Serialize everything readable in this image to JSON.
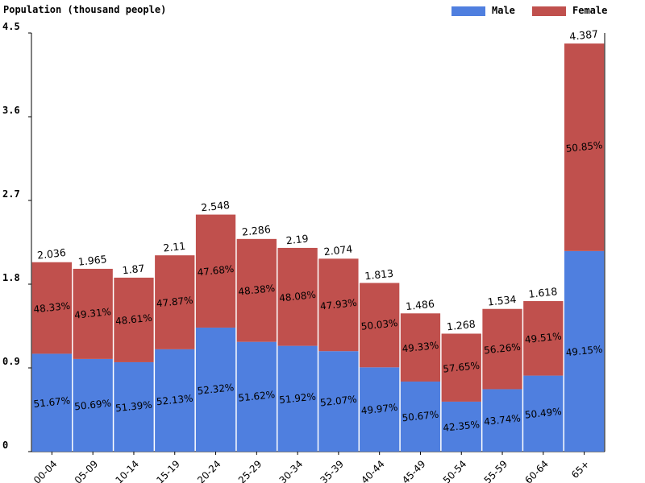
{
  "chart_data": {
    "type": "bar",
    "stacked": true,
    "title": "Population (thousand people)",
    "categories": [
      "00-04",
      "05-09",
      "10-14",
      "15-19",
      "20-24",
      "25-29",
      "30-34",
      "35-39",
      "40-44",
      "45-49",
      "50-54",
      "55-59",
      "60-64",
      "65+"
    ],
    "totals": [
      "2.036",
      "1.965",
      "1.87",
      "2.11",
      "2.548",
      "2.286",
      "2.19",
      "2.074",
      "1.813",
      "1.486",
      "1.268",
      "1.534",
      "1.618",
      "4.387"
    ],
    "series": [
      {
        "name": "Male",
        "color": "#4f7fdf",
        "values": [
          1.052,
          0.996,
          0.961,
          1.1,
          1.333,
          1.18,
          1.137,
          1.08,
          0.906,
          0.753,
          0.537,
          0.671,
          0.817,
          2.156
        ],
        "labels": [
          "51.67%",
          "50.69%",
          "51.39%",
          "52.13%",
          "52.32%",
          "51.62%",
          "51.92%",
          "52.07%",
          "49.97%",
          "50.67%",
          "42.35%",
          "43.74%",
          "50.49%",
          "49.15%"
        ]
      },
      {
        "name": "Female",
        "color": "#c0504d",
        "values": [
          0.984,
          0.969,
          0.909,
          1.01,
          1.215,
          1.106,
          1.053,
          0.994,
          0.907,
          0.733,
          0.731,
          0.863,
          0.801,
          2.231
        ],
        "labels": [
          "48.33%",
          "49.31%",
          "48.61%",
          "47.87%",
          "47.68%",
          "48.38%",
          "48.08%",
          "47.93%",
          "50.03%",
          "49.33%",
          "57.65%",
          "56.26%",
          "49.51%",
          "50.85%"
        ]
      }
    ],
    "yticks": [
      "0",
      "0.9",
      "1.8",
      "2.7",
      "3.6",
      "4.5"
    ],
    "ylim": [
      0,
      4.5
    ],
    "grid": false,
    "legend_position": "top-right"
  }
}
